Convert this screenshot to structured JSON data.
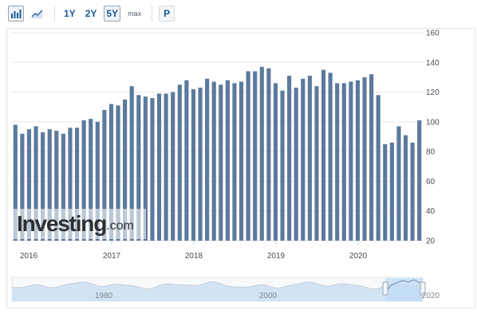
{
  "toolbar": {
    "bar_chart_icon": "bar-chart-icon",
    "line_chart_icon": "line-chart-icon",
    "ranges": [
      "1Y",
      "2Y",
      "5Y",
      "max"
    ],
    "active_range": "5Y",
    "print_label": "P"
  },
  "watermark": {
    "brand": "Investing",
    "domain": ".com"
  },
  "navigator": {
    "labels": [
      "1980",
      "2000",
      "2020"
    ]
  },
  "colors": {
    "bar": "#5b7a9c",
    "grid": "#e6e6e6",
    "accent": "#1a5a96",
    "navigator_fill": "#d2e3f3",
    "navigator_line": "#c5ced7",
    "selection": "#bfdcf7"
  },
  "chart_data": {
    "type": "bar",
    "x_tick_labels": [
      "2016",
      "2017",
      "2018",
      "2019",
      "2020"
    ],
    "y_tick_labels": [
      "20",
      "40",
      "60",
      "80",
      "100",
      "120",
      "140",
      "160"
    ],
    "ylim": [
      20,
      160
    ],
    "y_axis_position": "right",
    "grid": true,
    "series": [
      {
        "values": [
          98,
          92,
          95,
          97,
          93,
          95,
          94,
          92,
          96,
          96,
          101,
          102,
          100,
          108,
          112,
          111,
          115,
          124,
          118,
          117,
          116,
          119,
          119,
          120,
          125,
          128,
          122,
          123,
          129,
          127,
          125,
          128,
          126,
          127,
          134,
          134,
          137,
          136,
          126,
          121,
          131,
          123,
          129,
          131,
          124,
          135,
          133,
          126,
          126,
          127,
          128,
          130,
          132,
          118,
          85,
          86,
          97,
          91,
          86,
          101
        ]
      }
    ]
  }
}
